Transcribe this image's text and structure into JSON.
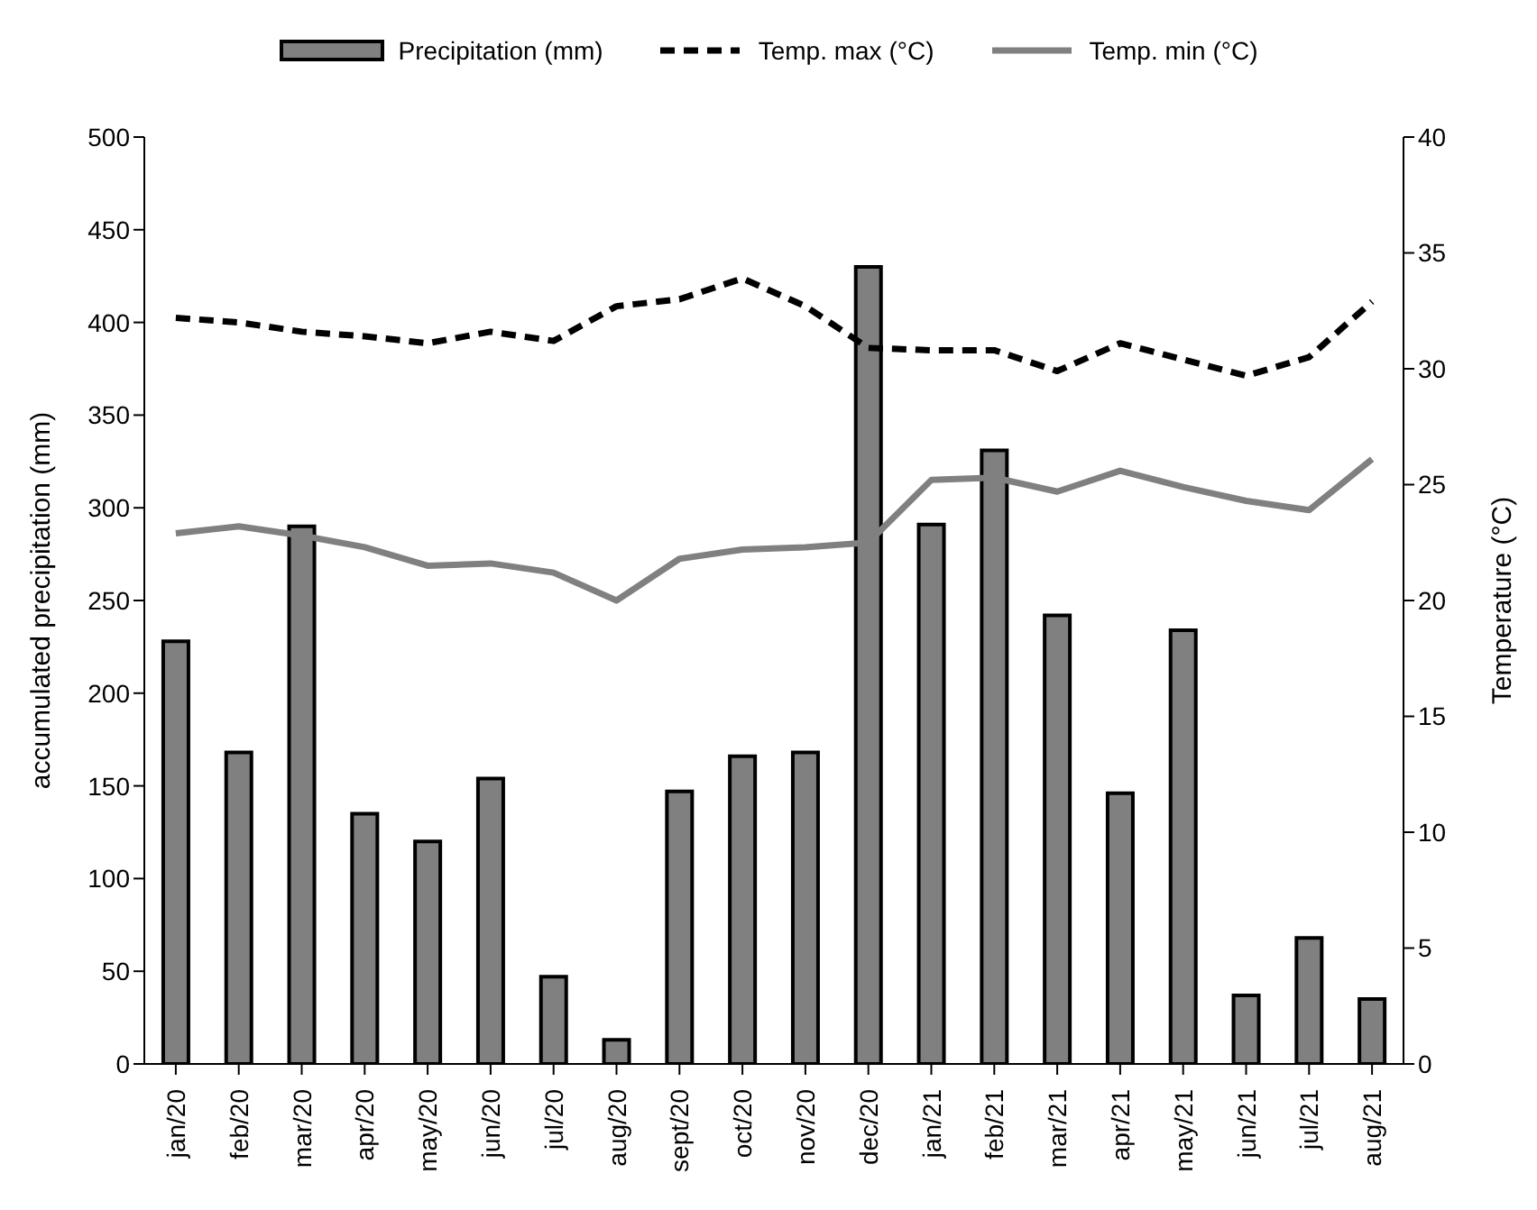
{
  "chart_data": {
    "type": "bar",
    "ylabel": "accumulated precipitation (mm)",
    "y2label": "Temperature (°C)",
    "categories": [
      "jan/20",
      "feb/20",
      "mar/20",
      "apr/20",
      "may/20",
      "jun/20",
      "jul/20",
      "aug/20",
      "sept/20",
      "oct/20",
      "nov/20",
      "dec/20",
      "jan/21",
      "feb/21",
      "mar/21",
      "apr/21",
      "may/21",
      "jun/21",
      "jul/21",
      "aug/21"
    ],
    "series": [
      {
        "name": "Precipitation (mm)",
        "color": "#808080",
        "values": [
          228,
          168,
          290,
          135,
          120,
          154,
          47,
          13,
          147,
          166,
          168,
          430,
          291,
          331,
          242,
          146,
          234,
          37,
          68,
          35
        ]
      },
      {
        "name": "Temp. max (°C)",
        "type": "line",
        "axis": "y2",
        "line_style": "dashed",
        "color": "#000000",
        "values": [
          32.2,
          32.0,
          31.6,
          31.4,
          31.1,
          31.6,
          31.2,
          32.7,
          33.0,
          33.9,
          32.7,
          30.9,
          30.8,
          30.8,
          29.9,
          31.1,
          30.4,
          29.7,
          30.5,
          32.9
        ]
      },
      {
        "name": "Temp. min (°C)",
        "type": "line",
        "axis": "y2",
        "line_style": "solid",
        "color": "#808080",
        "values": [
          22.9,
          23.2,
          22.8,
          22.3,
          21.5,
          21.6,
          21.2,
          20.0,
          21.8,
          22.2,
          22.3,
          22.5,
          25.2,
          25.3,
          24.7,
          25.6,
          24.9,
          24.3,
          23.9,
          26.1
        ]
      }
    ],
    "ylim": [
      0,
      500
    ],
    "yticks": [
      0,
      50,
      100,
      150,
      200,
      250,
      300,
      350,
      400,
      450,
      500
    ],
    "y2lim": [
      0,
      40
    ],
    "y2ticks": [
      0,
      5,
      10,
      15,
      20,
      25,
      30,
      35,
      40
    ],
    "legend": "top",
    "marker": "none"
  }
}
